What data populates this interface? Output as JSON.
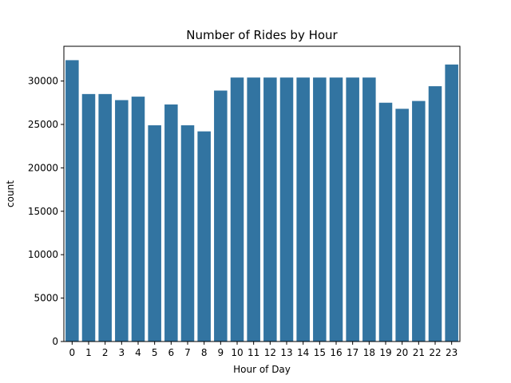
{
  "chart_data": {
    "type": "bar",
    "title": "Number of Rides by Hour",
    "xlabel": "Hour of Day",
    "ylabel": "count",
    "categories": [
      "0",
      "1",
      "2",
      "3",
      "4",
      "5",
      "6",
      "7",
      "8",
      "9",
      "10",
      "11",
      "12",
      "13",
      "14",
      "15",
      "16",
      "17",
      "18",
      "19",
      "20",
      "21",
      "22",
      "23"
    ],
    "values": [
      32400,
      28500,
      28500,
      27800,
      28200,
      24900,
      27300,
      24900,
      24200,
      28900,
      30400,
      30400,
      30400,
      30400,
      30400,
      30400,
      30400,
      30400,
      30400,
      27500,
      26800,
      27700,
      29400,
      31900
    ],
    "ylim": [
      0,
      34000
    ],
    "yticks": [
      0,
      5000,
      10000,
      15000,
      20000,
      25000,
      30000
    ],
    "bar_color": "#3274a1",
    "grid": false
  }
}
